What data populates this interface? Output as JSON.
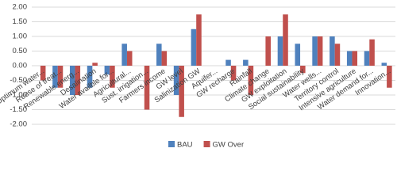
{
  "chart_data": {
    "type": "bar",
    "categories": [
      "Optimum water...",
      "Reuse of treat...",
      "Renewable energ...",
      "Desalination",
      "Water availble for...",
      "Agricultural...",
      "Sust. irrigation...",
      "Farmers income",
      "GW level",
      "Salinization GW",
      "Aquifer...",
      "GW recharge",
      "Rainfall",
      "Climate change",
      "GW exploitation",
      "Social sustainability",
      "Water wells...",
      "Territory control",
      "Intensive agriculture",
      "Water demand for...",
      "Innovation..."
    ],
    "series": [
      {
        "name": "BAU",
        "color": "#4f81bd",
        "values": [
          0,
          -0.75,
          -1.0,
          -0.75,
          -0.3,
          0.75,
          0,
          0.75,
          -1.0,
          1.25,
          0,
          0.2,
          0.2,
          0,
          1.0,
          0.75,
          1.0,
          1.0,
          0.5,
          0.5,
          0.1
        ]
      },
      {
        "name": "GW Over",
        "color": "#c0504d",
        "values": [
          -0.5,
          -0.75,
          -1.0,
          0.1,
          -0.75,
          0.5,
          -1.5,
          0.5,
          -1.75,
          1.75,
          0,
          -0.5,
          -1.0,
          1.0,
          1.75,
          -0.25,
          1.0,
          0.75,
          0.5,
          0.9,
          -0.75
        ]
      }
    ],
    "ylim": [
      -2,
      2
    ],
    "yticks": [
      {
        "value": -2,
        "label": "-2.00"
      },
      {
        "value": -1.5,
        "label": "-1.50"
      },
      {
        "value": -1,
        "label": "-1.00"
      },
      {
        "value": -0.5,
        "label": "-0.50"
      },
      {
        "value": 0,
        "label": "0.00"
      },
      {
        "value": 0.5,
        "label": "0.50"
      },
      {
        "value": 1,
        "label": "1.00"
      },
      {
        "value": 1.5,
        "label": "1.50"
      },
      {
        "value": 2,
        "label": "2.00"
      }
    ],
    "grid": true,
    "legend": "bottom"
  }
}
